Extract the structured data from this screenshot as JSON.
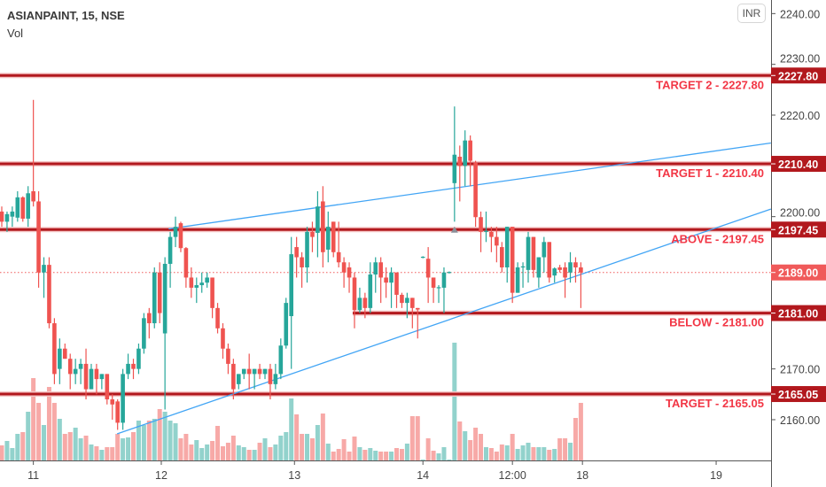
{
  "header": {
    "symbol": "ASIANPAINT, 15, NSE",
    "volume_label": "Vol",
    "currency_button": "INR"
  },
  "colors": {
    "up": "#26a69a",
    "down": "#ef5350",
    "level": "#b2181d",
    "trend": "#42a5f5",
    "label_text": "#f23645",
    "current": "#f05a5a"
  },
  "chart_data": {
    "type": "candlestick",
    "ylim": [
      2150,
      2240
    ],
    "y_ticks": [
      "2240.00",
      "2230.00",
      "2220.00",
      "2200.00",
      "2170.00",
      "2160.00"
    ],
    "y_tick_values": [
      2240,
      2230,
      2220,
      2200,
      2170,
      2160
    ],
    "x_ticks": [
      {
        "label": "11",
        "index": 6
      },
      {
        "label": "12",
        "index": 30.3
      },
      {
        "label": "13",
        "index": 55.6
      },
      {
        "label": "14",
        "index": 80
      },
      {
        "label": "12:00",
        "index": 97
      },
      {
        "label": "18",
        "index": 110.3
      },
      {
        "label": "19",
        "index": 135.7
      }
    ],
    "candles": [
      [
        2201,
        2202,
        2198,
        2199,
        17
      ],
      [
        2199,
        2201,
        2197,
        2200.5,
        22
      ],
      [
        2200,
        2202,
        2198,
        2201,
        14
      ],
      [
        2199.8,
        2205,
        2199,
        2203.8,
        30
      ],
      [
        2203.8,
        2204,
        2199,
        2199.6,
        32
      ],
      [
        2199.6,
        2206,
        2198,
        2204.6,
        55
      ],
      [
        2205,
        2223,
        2202,
        2203,
        93
      ],
      [
        2203,
        2205,
        2186,
        2189,
        65
      ],
      [
        2189,
        2192,
        2184,
        2190.5,
        40
      ],
      [
        2190.5,
        2192,
        2178,
        2179,
        83
      ],
      [
        2179,
        2180,
        2167,
        2169,
        65
      ],
      [
        2170,
        2176,
        2167,
        2174,
        47
      ],
      [
        2174,
        2175,
        2172,
        2172,
        30
      ],
      [
        2172,
        2173,
        2166,
        2169,
        32
      ],
      [
        2169,
        2172,
        2167,
        2170,
        37
      ],
      [
        2170,
        2172,
        2167,
        2171,
        25
      ],
      [
        2171,
        2174,
        2164,
        2166,
        28
      ],
      [
        2166,
        2171,
        2166,
        2170,
        18
      ],
      [
        2170,
        2171,
        2165,
        2168,
        16
      ],
      [
        2168,
        2169,
        2166,
        2169,
        12
      ],
      [
        2169,
        2169,
        2163,
        2164,
        15
      ],
      [
        2164,
        2165,
        2160,
        2163,
        15
      ],
      [
        2163.6,
        2164,
        2158,
        2159.4,
        30
      ],
      [
        2159.4,
        2170,
        2158,
        2169,
        25
      ],
      [
        2169,
        2173,
        2168,
        2171,
        26
      ],
      [
        2171,
        2172,
        2168,
        2170,
        32
      ],
      [
        2170,
        2175,
        2169,
        2174,
        45
      ],
      [
        2174,
        2181,
        2173,
        2180,
        40
      ],
      [
        2181,
        2182,
        2176,
        2179,
        45
      ],
      [
        2179,
        2190,
        2178,
        2189,
        47
      ],
      [
        2189,
        2191,
        2179,
        2181,
        58
      ],
      [
        2177,
        2192,
        2162,
        2190.7,
        55
      ],
      [
        2190.7,
        2197,
        2186,
        2196,
        45
      ],
      [
        2196,
        2200,
        2194,
        2198,
        42
      ],
      [
        2198.7,
        2199,
        2193,
        2193.8,
        25
      ],
      [
        2193.8,
        2194,
        2186,
        2188,
        30
      ],
      [
        2188,
        2190,
        2184,
        2186,
        18
      ],
      [
        2186,
        2188,
        2183,
        2186.5,
        23
      ],
      [
        2186.5,
        2189,
        2185,
        2187,
        14
      ],
      [
        2187,
        2189,
        2186,
        2188,
        18
      ],
      [
        2188,
        2188,
        2180,
        2182,
        22
      ],
      [
        2182,
        2183,
        2177,
        2178,
        39
      ],
      [
        2178,
        2179,
        2172,
        2174,
        16
      ],
      [
        2174,
        2175,
        2169,
        2171,
        20
      ],
      [
        2171,
        2172,
        2164,
        2166,
        28
      ],
      [
        2167,
        2169,
        2166,
        2169,
        17
      ],
      [
        2169,
        2170,
        2168,
        2170,
        15
      ],
      [
        2170,
        2173,
        2166,
        2169,
        12
      ],
      [
        2169,
        2170,
        2166,
        2170,
        12
      ],
      [
        2170,
        2171,
        2168,
        2169,
        20
      ],
      [
        2169,
        2170,
        2168,
        2170,
        25
      ],
      [
        2170,
        2171,
        2164,
        2167,
        15
      ],
      [
        2167,
        2171,
        2166,
        2169,
        18
      ],
      [
        2169,
        2176,
        2168,
        2174.6,
        28
      ],
      [
        2174.6,
        2184,
        2174,
        2183,
        32
      ],
      [
        2180.4,
        2196,
        2170,
        2192.6,
        70
      ],
      [
        2194,
        2196,
        2188,
        2192,
        52
      ],
      [
        2192,
        2193,
        2186,
        2190,
        30
      ],
      [
        2190,
        2198,
        2187,
        2197,
        30
      ],
      [
        2197,
        2199,
        2193,
        2196,
        25
      ],
      [
        2196.8,
        2205,
        2192,
        2202,
        40
      ],
      [
        2203,
        2206,
        2190,
        2193,
        53
      ],
      [
        2193.5,
        2201,
        2191,
        2198,
        19
      ],
      [
        2199,
        2199,
        2192,
        2193,
        10
      ],
      [
        2193,
        2199,
        2190,
        2191,
        13
      ],
      [
        2191,
        2192,
        2186,
        2189,
        24
      ],
      [
        2190,
        2191,
        2185,
        2188,
        10
      ],
      [
        2188,
        2189,
        2178,
        2181.6,
        27
      ],
      [
        2181.6,
        2186,
        2181,
        2184,
        15
      ],
      [
        2184,
        2185,
        2180,
        2182,
        12
      ],
      [
        2182,
        2191,
        2181,
        2188.6,
        14
      ],
      [
        2188.6,
        2192,
        2185,
        2191,
        11
      ],
      [
        2191,
        2192,
        2183,
        2188,
        10
      ],
      [
        2188,
        2190,
        2184,
        2187,
        10
      ],
      [
        2187,
        2190,
        2182,
        2189,
        10
      ],
      [
        2189,
        2189,
        2182,
        2184.6,
        14
      ],
      [
        2184.6,
        2185,
        2182,
        2183,
        13
      ],
      [
        2183,
        2185,
        2180,
        2184,
        19
      ],
      [
        2184,
        2184,
        2178,
        2182,
        50
      ],
      [
        2182,
        2182,
        2176,
        2181.7,
        50
      ],
      [
        2192,
        2192.2,
        2191.8,
        2192.1,
        1
      ],
      [
        2191.7,
        2194,
        2183,
        2188,
        25
      ],
      [
        2188,
        2188,
        2183,
        2186,
        11
      ],
      [
        2186,
        2186.5,
        2183,
        2186.1,
        8
      ],
      [
        2186,
        2190,
        2181,
        2189,
        15
      ],
      [
        2189,
        2189.2,
        2188.8,
        2189.1,
        1
      ],
      [
        2206.6,
        2221.7,
        2199,
        2212.2,
        133
      ],
      [
        2211.8,
        2214,
        2203,
        2210,
        44
      ],
      [
        2210,
        2217,
        2206,
        2215,
        33
      ],
      [
        2215,
        2216,
        2206,
        2211,
        23
      ],
      [
        2210.6,
        2211,
        2198,
        2199.9,
        37
      ],
      [
        2199.9,
        2201,
        2193,
        2197,
        30
      ],
      [
        2197,
        2201,
        2195,
        2197.2,
        15
      ],
      [
        2197,
        2198,
        2193,
        2196,
        14
      ],
      [
        2196,
        2198,
        2191,
        2194.3,
        10
      ],
      [
        2194,
        2195,
        2189,
        2190,
        18
      ],
      [
        2190,
        2198,
        2187,
        2198,
        17
      ],
      [
        2198,
        2198,
        2183,
        2185,
        30
      ],
      [
        2185,
        2191,
        2185,
        2190,
        13
      ],
      [
        2190,
        2191,
        2186,
        2190.2,
        17
      ],
      [
        2189.5,
        2197,
        2187,
        2196,
        20
      ],
      [
        2196,
        2196,
        2188,
        2189.5,
        15
      ],
      [
        2188,
        2192,
        2186,
        2192,
        15
      ],
      [
        2192,
        2196,
        2189,
        2195,
        15
      ],
      [
        2195,
        2195,
        2187,
        2188,
        12
      ],
      [
        2188.4,
        2190,
        2187,
        2189.8,
        13
      ],
      [
        2190,
        2190.5,
        2189,
        2189.5,
        25
      ],
      [
        2190,
        2191,
        2184,
        2188,
        25
      ],
      [
        2189,
        2193,
        2187,
        2191,
        20
      ],
      [
        2191,
        2192,
        2187,
        2190,
        48
      ],
      [
        2190,
        2191,
        2182,
        2189,
        65
      ]
    ],
    "levels": [
      {
        "price": 2227.8,
        "label": "TARGET 2 - 2227.80",
        "axis_label": "2227.80",
        "from_index": 0
      },
      {
        "price": 2210.4,
        "label": "TARGET 1 - 2210.40",
        "axis_label": "2210.40",
        "from_index": 0
      },
      {
        "price": 2197.45,
        "label": "ABOVE - 2197.45",
        "axis_label": "2197.45",
        "from_index": 0
      },
      {
        "price": 2181.0,
        "label": "BELOW - 2181.00",
        "axis_label": "2181.00",
        "from_index": 67
      },
      {
        "price": 2165.05,
        "label": "TARGET - 2165.05",
        "axis_label": "2165.05",
        "from_index": 0
      }
    ],
    "current_price": {
      "price": 2189.0,
      "axis_label": "2189.00"
    },
    "trendlines": [
      {
        "name": "upper-channel",
        "start": [
          31.7,
          2197.6
        ],
        "end": [
          146.1,
          2214.5
        ]
      },
      {
        "name": "lower-channel",
        "start": [
          21.9,
          2157.2
        ],
        "end": [
          146.1,
          2201.5
        ]
      }
    ]
  }
}
